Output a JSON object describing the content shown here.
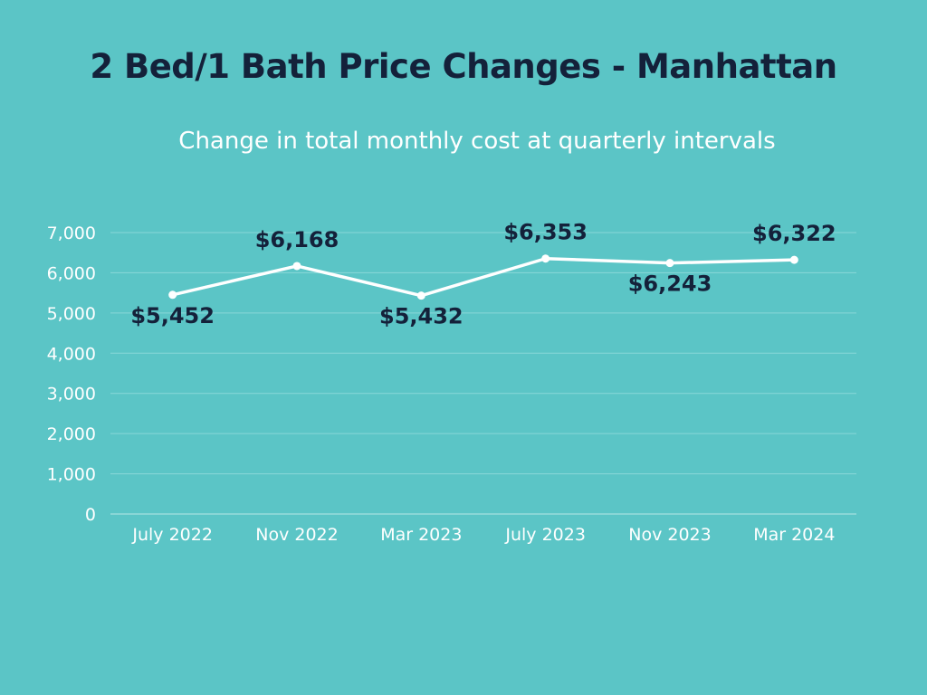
{
  "chart_data": {
    "type": "line",
    "title": "2 Bed/1 Bath Price Changes - Manhattan",
    "subtitle": "Change in total monthly cost at quarterly intervals",
    "categories": [
      "July 2022",
      "Nov 2022",
      "Mar 2023",
      "July 2023",
      "Nov 2023",
      "Mar 2024"
    ],
    "values": [
      5452,
      6168,
      5432,
      6353,
      6243,
      6322
    ],
    "data_labels": [
      "$5,452",
      "$6,168",
      "$5,432",
      "$6,353",
      "$6,243",
      "$6,322"
    ],
    "label_positions": [
      "below",
      "above",
      "below",
      "above",
      "below",
      "above"
    ],
    "yticks": [
      "0",
      "1,000",
      "2,000",
      "3,000",
      "4,000",
      "5,000",
      "6,000",
      "7,000"
    ],
    "ylim": [
      0,
      7000
    ],
    "xlabel": "",
    "ylabel": "",
    "grid": true,
    "colors": {
      "background": "#5bc5c6",
      "line": "#ffffff",
      "grid": "#8ad8d8",
      "title": "#14213a",
      "label": "#14213a"
    }
  }
}
